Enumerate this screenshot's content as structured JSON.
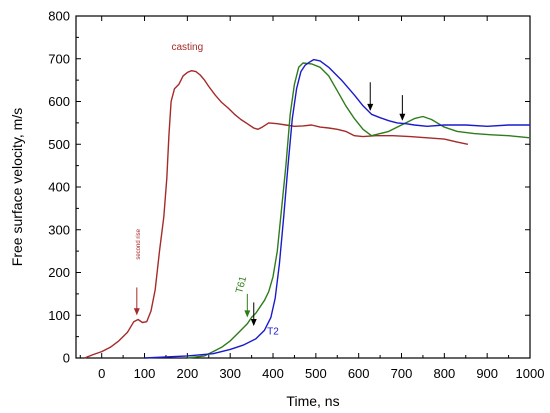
{
  "chart_data": {
    "type": "line",
    "title": "",
    "xlabel": "Time, ns",
    "ylabel": "Free surface velocity, m/s",
    "xlim": [
      -60,
      1000
    ],
    "ylim": [
      0,
      800
    ],
    "x_ticks": [
      "0",
      "100",
      "200",
      "300",
      "400",
      "500",
      "600",
      "700",
      "800",
      "900",
      "1000"
    ],
    "y_ticks": [
      "0",
      "100",
      "200",
      "300",
      "400",
      "500",
      "600",
      "700",
      "800"
    ],
    "grid": false,
    "legend": "none",
    "series": [
      {
        "name": "casting",
        "color": "#a52a2a",
        "points": [
          [
            -40,
            0
          ],
          [
            -20,
            8
          ],
          [
            0,
            15
          ],
          [
            20,
            25
          ],
          [
            40,
            40
          ],
          [
            60,
            60
          ],
          [
            75,
            85
          ],
          [
            85,
            90
          ],
          [
            95,
            83
          ],
          [
            105,
            85
          ],
          [
            115,
            110
          ],
          [
            125,
            160
          ],
          [
            135,
            250
          ],
          [
            145,
            330
          ],
          [
            152,
            420
          ],
          [
            157,
            520
          ],
          [
            162,
            600
          ],
          [
            170,
            630
          ],
          [
            180,
            640
          ],
          [
            190,
            660
          ],
          [
            200,
            668
          ],
          [
            210,
            672
          ],
          [
            220,
            670
          ],
          [
            230,
            662
          ],
          [
            240,
            650
          ],
          [
            250,
            635
          ],
          [
            265,
            615
          ],
          [
            280,
            598
          ],
          [
            295,
            585
          ],
          [
            310,
            570
          ],
          [
            325,
            558
          ],
          [
            340,
            548
          ],
          [
            355,
            538
          ],
          [
            365,
            535
          ],
          [
            375,
            540
          ],
          [
            390,
            550
          ],
          [
            410,
            548
          ],
          [
            430,
            545
          ],
          [
            450,
            542
          ],
          [
            470,
            543
          ],
          [
            490,
            545
          ],
          [
            510,
            540
          ],
          [
            530,
            538
          ],
          [
            550,
            535
          ],
          [
            570,
            530
          ],
          [
            590,
            520
          ],
          [
            610,
            518
          ],
          [
            640,
            520
          ],
          [
            680,
            520
          ],
          [
            720,
            518
          ],
          [
            760,
            515
          ],
          [
            800,
            512
          ],
          [
            830,
            505
          ],
          [
            855,
            500
          ]
        ]
      },
      {
        "name": "T61",
        "color": "#2e7d1a",
        "points": [
          [
            200,
            0
          ],
          [
            240,
            5
          ],
          [
            260,
            15
          ],
          [
            280,
            25
          ],
          [
            300,
            40
          ],
          [
            320,
            60
          ],
          [
            340,
            80
          ],
          [
            350,
            95
          ],
          [
            360,
            105
          ],
          [
            370,
            120
          ],
          [
            380,
            135
          ],
          [
            390,
            155
          ],
          [
            400,
            190
          ],
          [
            410,
            250
          ],
          [
            420,
            350
          ],
          [
            430,
            450
          ],
          [
            440,
            570
          ],
          [
            450,
            640
          ],
          [
            460,
            680
          ],
          [
            470,
            690
          ],
          [
            490,
            688
          ],
          [
            510,
            680
          ],
          [
            530,
            660
          ],
          [
            550,
            625
          ],
          [
            570,
            590
          ],
          [
            590,
            560
          ],
          [
            610,
            535
          ],
          [
            630,
            520
          ],
          [
            650,
            525
          ],
          [
            670,
            530
          ],
          [
            690,
            540
          ],
          [
            710,
            550
          ],
          [
            730,
            560
          ],
          [
            750,
            565
          ],
          [
            770,
            558
          ],
          [
            800,
            540
          ],
          [
            830,
            530
          ],
          [
            870,
            525
          ],
          [
            910,
            522
          ],
          [
            950,
            520
          ],
          [
            1000,
            515
          ]
        ]
      },
      {
        "name": "T2",
        "color": "#1a1acd",
        "points": [
          [
            100,
            0
          ],
          [
            200,
            5
          ],
          [
            260,
            10
          ],
          [
            300,
            20
          ],
          [
            330,
            30
          ],
          [
            360,
            45
          ],
          [
            380,
            65
          ],
          [
            395,
            95
          ],
          [
            405,
            140
          ],
          [
            415,
            220
          ],
          [
            425,
            330
          ],
          [
            435,
            450
          ],
          [
            445,
            560
          ],
          [
            455,
            630
          ],
          [
            465,
            670
          ],
          [
            475,
            685
          ],
          [
            485,
            692
          ],
          [
            495,
            698
          ],
          [
            510,
            695
          ],
          [
            530,
            680
          ],
          [
            560,
            650
          ],
          [
            590,
            615
          ],
          [
            610,
            590
          ],
          [
            630,
            570
          ],
          [
            650,
            562
          ],
          [
            670,
            555
          ],
          [
            690,
            550
          ],
          [
            710,
            548
          ],
          [
            730,
            545
          ],
          [
            760,
            542
          ],
          [
            800,
            545
          ],
          [
            850,
            545
          ],
          [
            900,
            542
          ],
          [
            950,
            545
          ],
          [
            1000,
            545
          ]
        ]
      }
    ],
    "annotations": [
      {
        "text": "casting",
        "x": 200,
        "y": 720
      },
      {
        "text": "second rise",
        "x": 82,
        "y": 230
      },
      {
        "text": "T61",
        "x": 318,
        "y": 150
      },
      {
        "text": "T2",
        "x": 400,
        "y": 55
      }
    ],
    "arrows": [
      {
        "x": 82,
        "y_from": 165,
        "y_to": 100,
        "color": "#a52a2a"
      },
      {
        "x": 340,
        "y_from": 150,
        "y_to": 95,
        "color": "#2e7d1a"
      },
      {
        "x": 355,
        "y_from": 130,
        "y_to": 75,
        "color": "#000000"
      },
      {
        "x": 627,
        "y_from": 645,
        "y_to": 578,
        "color": "#000000"
      },
      {
        "x": 702,
        "y_from": 615,
        "y_to": 555,
        "color": "#000000"
      }
    ]
  }
}
